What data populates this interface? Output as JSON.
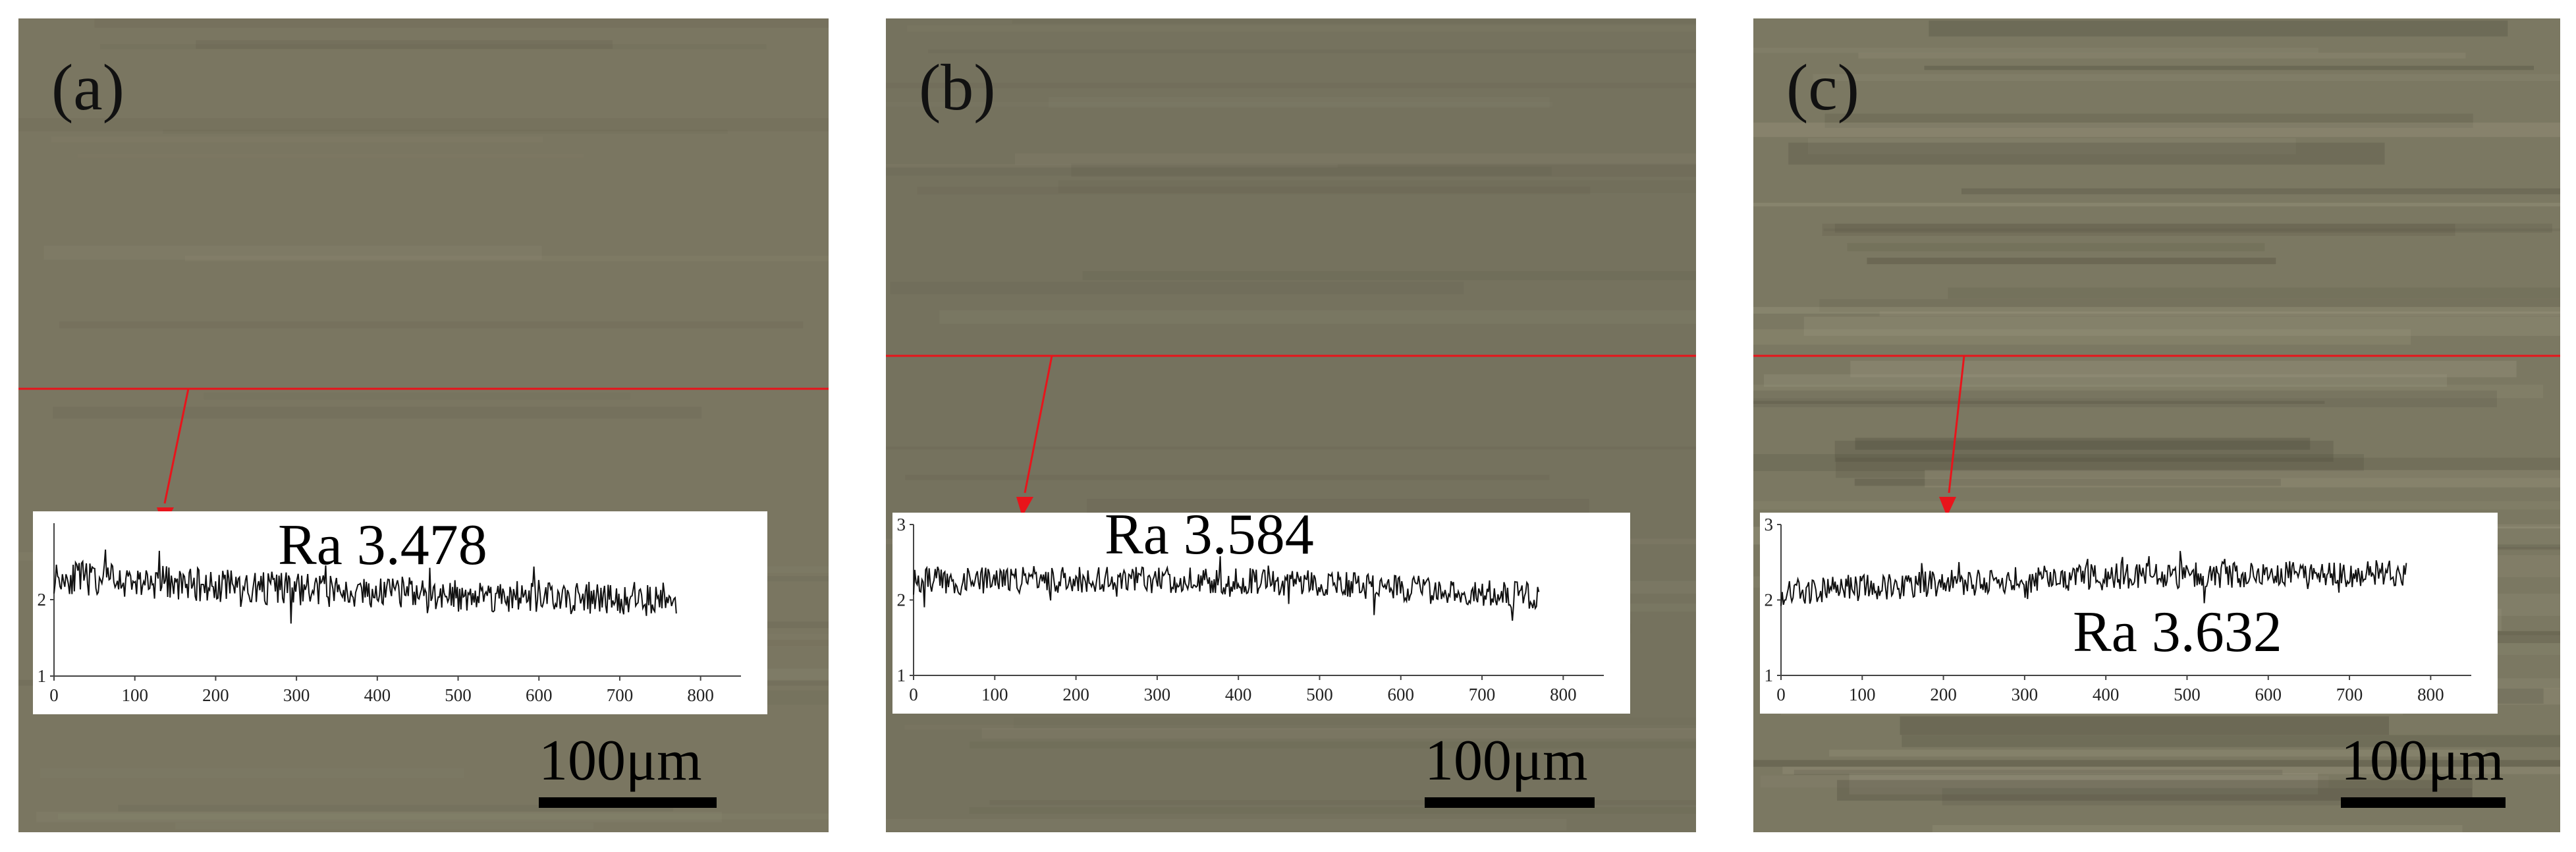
{
  "panels": [
    {
      "label": "(a)",
      "surface_color": "#7a7661",
      "ra_text": "Ra 3.478",
      "scale_text": "100μm",
      "profile": {
        "x": [
          0,
          770
        ],
        "y_range": [
          1,
          3
        ],
        "mean": 2.1,
        "start": 2.3,
        "end": 2.0,
        "noise": 0.22,
        "seed": 11
      },
      "x_ticks": [
        "0",
        "100",
        "200",
        "300",
        "400",
        "500",
        "600",
        "700",
        "800"
      ],
      "y_ticks": [
        "1",
        "2"
      ]
    },
    {
      "label": "(b)",
      "surface_color": "#75725e",
      "ra_text": "Ra 3.584",
      "scale_text": "100μm",
      "profile": {
        "x": [
          0,
          770
        ],
        "y_range": [
          1,
          3
        ],
        "mean": 2.25,
        "start": 2.25,
        "end": 2.05,
        "noise": 0.18,
        "seed": 29
      },
      "x_ticks": [
        "0",
        "100",
        "200",
        "300",
        "400",
        "500",
        "600",
        "700",
        "800"
      ],
      "y_ticks": [
        "1",
        "2",
        "3"
      ]
    },
    {
      "label": "(c)",
      "surface_color": "#7b7862",
      "ra_text": "Ra 3.632",
      "scale_text": "100μm",
      "profile": {
        "x": [
          0,
          770
        ],
        "y_range": [
          1,
          3
        ],
        "mean": 2.3,
        "start": 2.1,
        "end": 2.35,
        "noise": 0.18,
        "seed": 47
      },
      "x_ticks": [
        "0",
        "100",
        "200",
        "300",
        "400",
        "500",
        "600",
        "700",
        "800"
      ],
      "y_ticks": [
        "1",
        "2",
        "3"
      ]
    }
  ]
}
